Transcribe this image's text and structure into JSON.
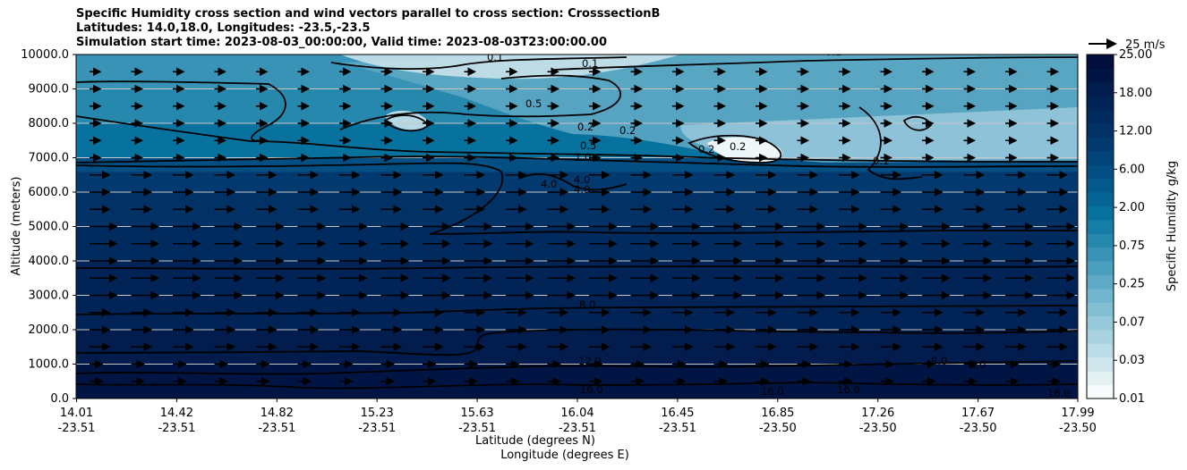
{
  "chart_data": {
    "type": "heatmap",
    "title_lines": [
      "Specific Humidity cross section and wind vectors parallel to cross section: CrosssectionB",
      "Latitudes: 14.0,18.0, Longitudes: -23.5,-23.5",
      "Simulation start time: 2023-08-03_00:00:00, Valid time: 2023-08-03T23:00:00.00"
    ],
    "xlabel_lat": "Latitude (degrees N)",
    "xlabel_lon": "Longitude (degrees E)",
    "ylabel": "Altitude (meters)",
    "ylim": [
      0,
      10000
    ],
    "yticks": [
      "0.0",
      "1000.0",
      "2000.0",
      "3000.0",
      "4000.0",
      "5000.0",
      "6000.0",
      "7000.0",
      "8000.0",
      "9000.0",
      "10000.0"
    ],
    "xticks": [
      {
        "lat": "14.01",
        "lon": "-23.51"
      },
      {
        "lat": "14.42",
        "lon": "-23.51"
      },
      {
        "lat": "14.82",
        "lon": "-23.51"
      },
      {
        "lat": "15.23",
        "lon": "-23.51"
      },
      {
        "lat": "15.63",
        "lon": "-23.51"
      },
      {
        "lat": "16.04",
        "lon": "-23.51"
      },
      {
        "lat": "16.45",
        "lon": "-23.51"
      },
      {
        "lat": "16.85",
        "lon": "-23.50"
      },
      {
        "lat": "17.26",
        "lon": "-23.50"
      },
      {
        "lat": "17.67",
        "lon": "-23.50"
      },
      {
        "lat": "17.99",
        "lon": "-23.50"
      }
    ],
    "colorbar": {
      "label": "Specific Humidity g/kg",
      "tick_labels": [
        "0.01",
        "0.03",
        "0.07",
        "0.25",
        "0.75",
        "2.00",
        "6.00",
        "12.00",
        "18.00",
        "25.00"
      ],
      "colors": [
        "#f7fbfb",
        "#e3f1f3",
        "#cfe6ec",
        "#bcdde7",
        "#a9d3e0",
        "#96c9da",
        "#83bfd3",
        "#70b4cd",
        "#5da9c6",
        "#4a9ebe",
        "#3893b6",
        "#2788ae",
        "#167da6",
        "#08729e",
        "#066596",
        "#04598c",
        "#034e83",
        "#02437a",
        "#023a70",
        "#023166",
        "#012a5e",
        "#012356",
        "#011c4d",
        "#011545",
        "#010e3c"
      ]
    },
    "quiver_key": "25 m/s",
    "contour_labels": [
      "0.1",
      "0.1",
      "0.1",
      "0.2",
      "0.2",
      "0.2",
      "0.2",
      "0.5",
      "0.5",
      "1.0",
      "4.0",
      "4.0",
      "4.0",
      "8.0",
      "8.0",
      "8.0",
      "12.0",
      "16.0",
      "16.0",
      "16.0",
      "16.0",
      "0.1"
    ],
    "humidity_profile": [
      {
        "alt": 0,
        "q": 17.5
      },
      {
        "alt": 500,
        "q": 16.0
      },
      {
        "alt": 1000,
        "q": 13.0
      },
      {
        "alt": 2000,
        "q": 10.0
      },
      {
        "alt": 3000,
        "q": 8.0
      },
      {
        "alt": 4000,
        "q": 7.0
      },
      {
        "alt": 5000,
        "q": 5.8
      },
      {
        "alt": 6000,
        "q": 4.0
      },
      {
        "alt": 6600,
        "q": 2.0
      },
      {
        "alt": 7000,
        "q": 1.0
      },
      {
        "alt": 8000,
        "q": 0.5
      },
      {
        "alt": 9000,
        "q": 0.3
      },
      {
        "alt": 10000,
        "q": 0.2
      }
    ]
  }
}
